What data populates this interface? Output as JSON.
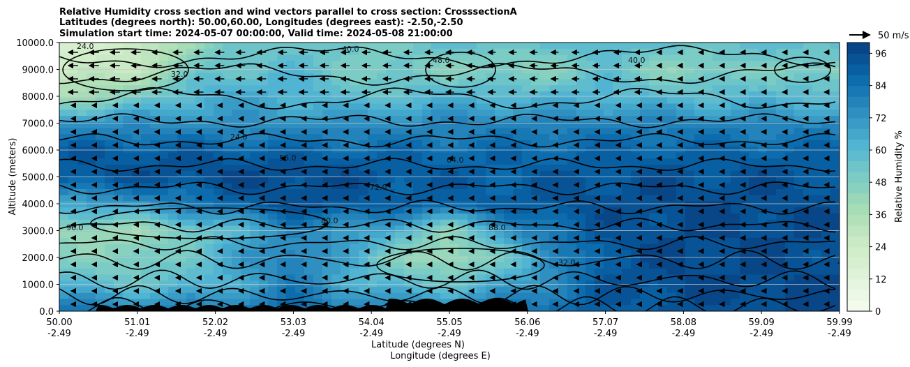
{
  "chart_data": {
    "type": "heatmap",
    "title_lines": [
      "Relative Humidity cross section and wind vectors parallel to cross section: CrosssectionA",
      "Latitudes (degrees north): 50.00,60.00, Longitudes (degrees east): -2.50,-2.50",
      "Simulation start time: 2024-05-07 00:00:00, Valid time: 2024-05-08 21:00:00"
    ],
    "ylabel": "Altitude (meters)",
    "xlabel_lines": [
      "Latitude (degrees N)",
      "Longitude (degrees E)"
    ],
    "ylim": [
      0,
      10000
    ],
    "y_ticks": [
      "0.0",
      "1000.0",
      "2000.0",
      "3000.0",
      "4000.0",
      "5000.0",
      "6000.0",
      "7000.0",
      "8000.0",
      "9000.0",
      "10000.0"
    ],
    "x_ticks": [
      {
        "lat": "50.00",
        "lon": "-2.49"
      },
      {
        "lat": "51.01",
        "lon": "-2.49"
      },
      {
        "lat": "52.02",
        "lon": "-2.49"
      },
      {
        "lat": "53.03",
        "lon": "-2.49"
      },
      {
        "lat": "54.04",
        "lon": "-2.49"
      },
      {
        "lat": "55.05",
        "lon": "-2.49"
      },
      {
        "lat": "56.06",
        "lon": "-2.49"
      },
      {
        "lat": "57.07",
        "lon": "-2.49"
      },
      {
        "lat": "58.08",
        "lon": "-2.49"
      },
      {
        "lat": "59.09",
        "lon": "-2.49"
      },
      {
        "lat": "59.99",
        "lon": "-2.49"
      }
    ],
    "grid": "horizontal",
    "colorbar": {
      "label": "Relative Humidity %",
      "range": [
        0,
        100
      ],
      "ticks": [
        "0",
        "12",
        "24",
        "36",
        "48",
        "60",
        "72",
        "84",
        "96"
      ]
    },
    "quiver_key": {
      "label": "50 m/s",
      "speed": 50
    },
    "contour_labels": [
      "24.0",
      "32.0",
      "40.0",
      "48.0",
      "56.0",
      "64.0",
      "72.0",
      "80.0",
      "88.0",
      "96.0"
    ],
    "rh_field": {
      "lat": [
        50.0,
        51.0,
        52.0,
        53.0,
        54.0,
        55.0,
        56.0,
        57.0,
        58.0,
        59.0,
        60.0
      ],
      "altitude_m": [
        0,
        1000,
        2000,
        3000,
        4000,
        5000,
        6000,
        7000,
        8000,
        9000,
        10000
      ],
      "rh_percent": [
        [
          85,
          80,
          82,
          85,
          80,
          82,
          85,
          90,
          94,
          96,
          96
        ],
        [
          60,
          55,
          60,
          80,
          60,
          55,
          70,
          92,
          96,
          96,
          96
        ],
        [
          50,
          45,
          62,
          82,
          55,
          35,
          62,
          92,
          96,
          96,
          95
        ],
        [
          42,
          40,
          55,
          75,
          70,
          45,
          80,
          93,
          96,
          96,
          95
        ],
        [
          65,
          72,
          85,
          95,
          90,
          88,
          91,
          94,
          96,
          95,
          94
        ],
        [
          92,
          94,
          96,
          96,
          93,
          90,
          90,
          93,
          94,
          94,
          93
        ],
        [
          90,
          90,
          90,
          88,
          86,
          86,
          86,
          88,
          88,
          88,
          88
        ],
        [
          72,
          75,
          72,
          72,
          74,
          76,
          78,
          78,
          78,
          76,
          76
        ],
        [
          35,
          48,
          66,
          64,
          55,
          62,
          60,
          62,
          58,
          60,
          58
        ],
        [
          22,
          30,
          55,
          58,
          50,
          48,
          45,
          55,
          45,
          50,
          45
        ],
        [
          18,
          22,
          50,
          55,
          50,
          58,
          55,
          60,
          55,
          58,
          60
        ]
      ]
    }
  }
}
